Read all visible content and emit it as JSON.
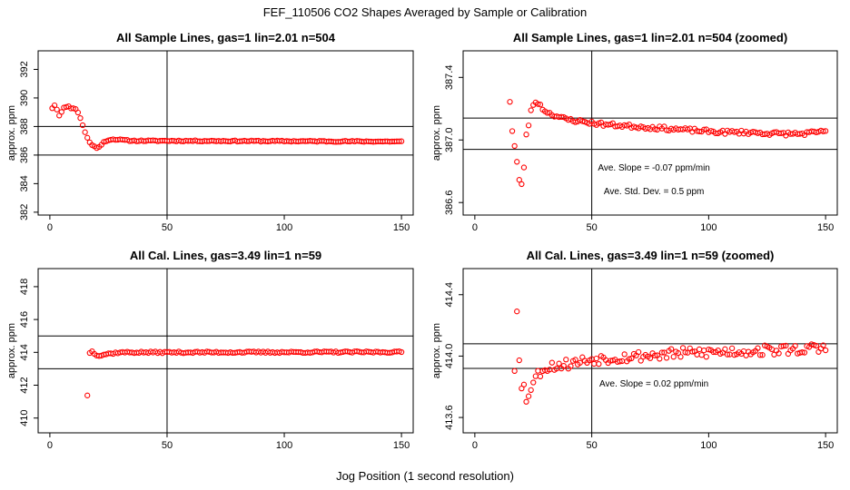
{
  "figure": {
    "title": "FEF_110506  CO2 Shapes Averaged by Sample or Calibration",
    "xlabel": "Jog Position (1 second resolution)",
    "point_color": "#ff0000"
  },
  "chart_data": [
    {
      "type": "scatter",
      "title": "All Sample Lines, gas=1 lin=2.01 n=504",
      "ylabel": "approx. ppm",
      "xlim": [
        -5,
        155
      ],
      "ylim": [
        381.8,
        393.3
      ],
      "xticks": [
        0,
        50,
        100,
        150
      ],
      "yticks": [
        382,
        384,
        386,
        388,
        390,
        392
      ],
      "vline": 50,
      "hlines": [
        386,
        388
      ],
      "annotations": [],
      "x_range": [
        1,
        150
      ],
      "anchors": [
        [
          1,
          389.3
        ],
        [
          2,
          389.5
        ],
        [
          3,
          389.2
        ],
        [
          4,
          388.8
        ],
        [
          5,
          389.0
        ],
        [
          6,
          389.3
        ],
        [
          7,
          389.4
        ],
        [
          8,
          389.4
        ],
        [
          9,
          389.3
        ],
        [
          10,
          389.3
        ],
        [
          11,
          389.2
        ],
        [
          12,
          389.0
        ],
        [
          13,
          388.6
        ],
        [
          14,
          388.1
        ],
        [
          15,
          387.6
        ],
        [
          16,
          387.2
        ],
        [
          17,
          386.9
        ],
        [
          18,
          386.7
        ],
        [
          19,
          386.6
        ],
        [
          20,
          386.5
        ],
        [
          21,
          386.6
        ],
        [
          22,
          386.7
        ],
        [
          23,
          386.9
        ],
        [
          24,
          387.0
        ],
        [
          26,
          387.1
        ],
        [
          28,
          387.1
        ],
        [
          35,
          387.0
        ],
        [
          50,
          387.0
        ],
        [
          150,
          386.95
        ]
      ],
      "noise": 0.04,
      "seed": 11
    },
    {
      "type": "scatter",
      "title": "All Sample Lines, gas=1 lin=2.01 n=504 (zoomed)",
      "ylabel": "approx. ppm",
      "xlim": [
        -5,
        155
      ],
      "ylim": [
        386.52,
        387.57
      ],
      "xticks": [
        0,
        50,
        100,
        150
      ],
      "yticks": [
        386.6,
        387.0,
        387.4
      ],
      "ytick_format": 1,
      "vline": 50,
      "hlines": [
        386.94,
        387.14
      ],
      "annotations": [
        "Ave. Slope =  -0.07  ppm/min",
        "Ave. Std. Dev. =  0.5  ppm"
      ],
      "x_range": [
        15,
        150
      ],
      "anchors": [
        [
          15,
          387.25
        ],
        [
          16,
          387.06
        ],
        [
          17,
          386.96
        ],
        [
          18,
          386.86
        ],
        [
          19,
          386.74
        ],
        [
          20,
          386.71
        ],
        [
          21,
          386.83
        ],
        [
          22,
          387.03
        ],
        [
          23,
          387.1
        ],
        [
          24,
          387.18
        ],
        [
          25,
          387.23
        ],
        [
          26,
          387.24
        ],
        [
          27,
          387.24
        ],
        [
          28,
          387.22
        ],
        [
          29,
          387.2
        ],
        [
          30,
          387.19
        ],
        [
          32,
          387.17
        ],
        [
          34,
          387.16
        ],
        [
          37,
          387.14
        ],
        [
          40,
          387.13
        ],
        [
          45,
          387.12
        ],
        [
          55,
          387.1
        ],
        [
          65,
          387.09
        ],
        [
          75,
          387.08
        ],
        [
          85,
          387.07
        ],
        [
          95,
          387.06
        ],
        [
          105,
          387.05
        ],
        [
          115,
          387.05
        ],
        [
          130,
          387.04
        ],
        [
          140,
          387.04
        ],
        [
          148,
          387.05
        ],
        [
          150,
          387.06
        ]
      ],
      "noise": 0.012,
      "seed": 23
    },
    {
      "type": "scatter",
      "title": "All Cal. Lines, gas=3.49 lin=1 n=59",
      "ylabel": "approx. ppm",
      "xlim": [
        -5,
        155
      ],
      "ylim": [
        409.1,
        419.1
      ],
      "xticks": [
        0,
        50,
        100,
        150
      ],
      "yticks": [
        410,
        412,
        414,
        416,
        418
      ],
      "vline": 50,
      "hlines": [
        413,
        415
      ],
      "annotations": [],
      "x_range": [
        16,
        150
      ],
      "anchors": [
        [
          16,
          411.4
        ],
        [
          17,
          413.95
        ],
        [
          18,
          414.1
        ],
        [
          19,
          413.95
        ],
        [
          20,
          413.85
        ],
        [
          21,
          413.8
        ],
        [
          22,
          413.82
        ],
        [
          24,
          413.9
        ],
        [
          27,
          413.95
        ],
        [
          30,
          414.0
        ],
        [
          50,
          414.0
        ],
        [
          150,
          414.02
        ]
      ],
      "noise": 0.05,
      "seed": 37
    },
    {
      "type": "scatter",
      "title": "All Cal. Lines, gas=3.49 lin=1 n=59 (zoomed)",
      "ylabel": "approx. ppm",
      "xlim": [
        -5,
        155
      ],
      "ylim": [
        413.5,
        414.57
      ],
      "xticks": [
        0,
        50,
        100,
        150
      ],
      "yticks": [
        413.6,
        414.0,
        414.4
      ],
      "ytick_format": 1,
      "vline": 50,
      "hlines": [
        413.92,
        414.08
      ],
      "annotations": [
        "Ave. Slope =  0.02  ppm/min"
      ],
      "x_range": [
        17,
        150
      ],
      "anchors": [
        [
          17,
          413.92
        ],
        [
          18,
          414.32
        ],
        [
          19,
          414.0
        ],
        [
          20,
          413.78
        ],
        [
          21,
          413.8
        ],
        [
          22,
          413.72
        ],
        [
          23,
          413.76
        ],
        [
          24,
          413.8
        ],
        [
          26,
          413.86
        ],
        [
          28,
          413.9
        ],
        [
          31,
          413.93
        ],
        [
          40,
          413.95
        ],
        [
          50,
          413.98
        ],
        [
          70,
          414.0
        ],
        [
          90,
          414.02
        ],
        [
          110,
          414.03
        ],
        [
          130,
          414.04
        ],
        [
          150,
          414.05
        ]
      ],
      "noise": 0.035,
      "seed": 53
    }
  ]
}
